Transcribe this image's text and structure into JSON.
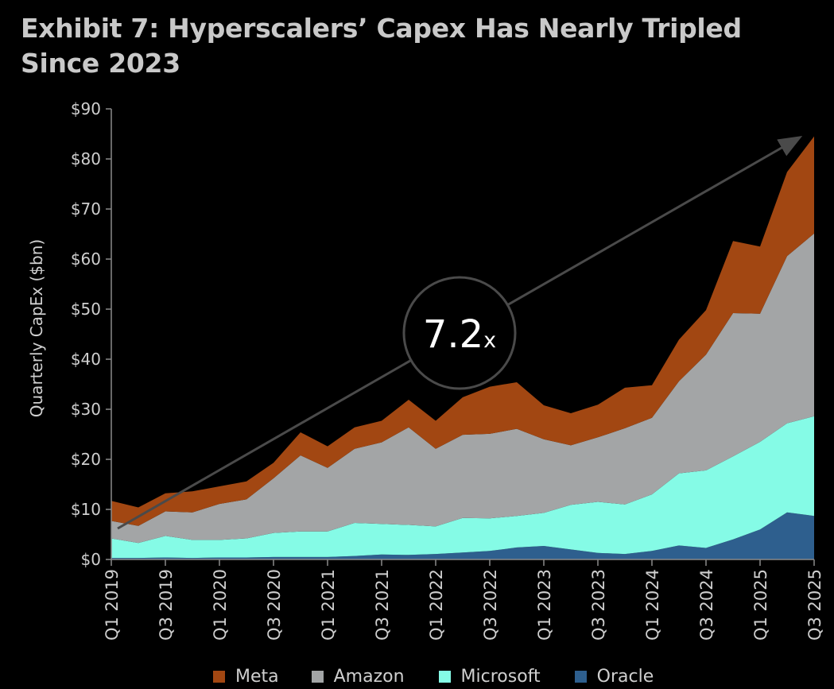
{
  "chart_data": {
    "type": "area",
    "stacked": true,
    "title_lines": [
      "Exhibit 7: Hyperscalers’ Capex Has Nearly Tripled",
      "Since 2023"
    ],
    "ylabel": "Quarterly CapEx ($bn)",
    "xlabel": "",
    "ylim": [
      0,
      90
    ],
    "y_ticks": [
      0,
      10,
      20,
      30,
      40,
      50,
      60,
      70,
      80,
      90
    ],
    "y_tick_labels": [
      "$0",
      "$10",
      "$20",
      "$30",
      "$40",
      "$50",
      "$60",
      "$70",
      "$80",
      "$90"
    ],
    "grid": false,
    "legend_position": "bottom",
    "quarters": [
      "Q1 2019",
      "Q2 2019",
      "Q3 2019",
      "Q4 2019",
      "Q1 2020",
      "Q2 2020",
      "Q3 2020",
      "Q4 2020",
      "Q1 2021",
      "Q2 2021",
      "Q3 2021",
      "Q4 2021",
      "Q1 2022",
      "Q2 2022",
      "Q3 2022",
      "Q4 2022",
      "Q1 2023",
      "Q2 2023",
      "Q3 2023",
      "Q4 2023",
      "Q1 2024",
      "Q2 2024",
      "Q3 2024",
      "Q4 2024",
      "Q1 2025",
      "Q2 2025",
      "Q3 2025"
    ],
    "tick_labels": [
      "Q1 2019",
      "Q3 2019",
      "Q1 2020",
      "Q3 2020",
      "Q1 2021",
      "Q3 2021",
      "Q1 2022",
      "Q3 2022",
      "Q1 2023",
      "Q3 2023",
      "Q1 2024",
      "Q3 2024",
      "Q1 2025",
      "Q3 2025"
    ],
    "series": [
      {
        "name": "Oracle",
        "color": "#2e5f8e",
        "values": [
          0.3,
          0.3,
          0.4,
          0.3,
          0.4,
          0.4,
          0.5,
          0.5,
          0.5,
          0.7,
          1.0,
          0.9,
          1.1,
          1.4,
          1.7,
          2.4,
          2.7,
          2.0,
          1.3,
          1.1,
          1.7,
          2.8,
          2.3,
          4.0,
          6.0,
          9.4,
          8.7
        ]
      },
      {
        "name": "Microsoft",
        "color": "#85fbe6",
        "values": [
          3.9,
          3.0,
          4.3,
          3.6,
          3.5,
          3.8,
          4.8,
          5.1,
          5.1,
          6.6,
          6.1,
          6.0,
          5.5,
          6.9,
          6.5,
          6.3,
          6.6,
          8.9,
          10.2,
          9.9,
          11.3,
          14.4,
          15.5,
          16.6,
          17.5,
          17.8,
          19.9
        ]
      },
      {
        "name": "Amazon",
        "color": "#a3a5a6",
        "values": [
          3.5,
          3.4,
          4.9,
          5.5,
          7.2,
          7.8,
          10.9,
          15.2,
          12.7,
          14.8,
          16.3,
          19.5,
          15.5,
          16.6,
          16.9,
          17.4,
          14.7,
          11.9,
          12.9,
          15.2,
          15.3,
          18.4,
          23.1,
          28.6,
          25.6,
          33.4,
          36.5
        ]
      },
      {
        "name": "Meta",
        "color": "#a24712",
        "values": [
          4.0,
          3.7,
          3.6,
          4.2,
          3.5,
          3.6,
          3.1,
          4.6,
          4.3,
          4.3,
          4.3,
          5.5,
          5.6,
          7.5,
          9.4,
          9.3,
          6.8,
          6.4,
          6.5,
          8.1,
          6.5,
          8.3,
          8.9,
          14.4,
          13.4,
          16.8,
          19.4
        ]
      }
    ],
    "annotation": {
      "value": "7.2",
      "unit": "x",
      "from": "Q1 2019",
      "to": "Q3 2025"
    }
  },
  "legend": {
    "items": [
      {
        "label": "Meta",
        "color": "#a24712"
      },
      {
        "label": "Amazon",
        "color": "#a3a5a6"
      },
      {
        "label": "Microsoft",
        "color": "#85fbe6"
      },
      {
        "label": "Oracle",
        "color": "#2e5f8e"
      }
    ]
  }
}
